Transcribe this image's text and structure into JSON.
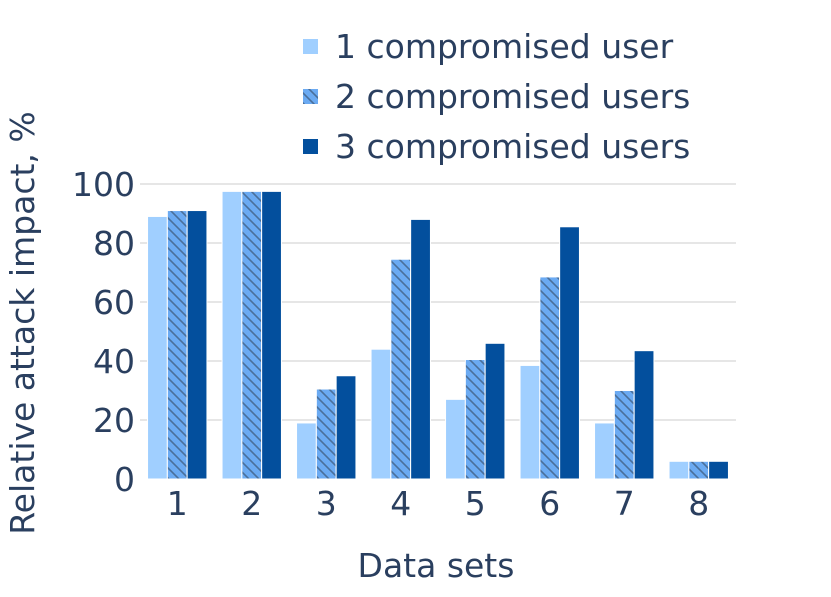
{
  "chart_data": {
    "type": "bar",
    "title": "",
    "xlabel": "Data sets",
    "ylabel": "Relative attack impact, %",
    "categories": [
      "1",
      "2",
      "3",
      "4",
      "5",
      "6",
      "7",
      "8"
    ],
    "ylim": [
      0,
      100
    ],
    "yticks": [
      0,
      20,
      40,
      60,
      80,
      100
    ],
    "grid": true,
    "legend_position": "top-right",
    "series": [
      {
        "name": "1 compromised user",
        "color": "#a0cfff",
        "pattern": "solid",
        "values": [
          89,
          97.5,
          19,
          44,
          27,
          38.5,
          19,
          6
        ]
      },
      {
        "name": "2 compromised users",
        "color": "#6baaf2",
        "pattern": "hatched",
        "values": [
          91,
          97.5,
          30.5,
          74.5,
          40.5,
          68.5,
          30,
          6
        ]
      },
      {
        "name": "3 compromised users",
        "color": "#034f9d",
        "pattern": "solid",
        "values": [
          91,
          97.5,
          35,
          88,
          46,
          85.5,
          43.5,
          6
        ]
      }
    ]
  }
}
